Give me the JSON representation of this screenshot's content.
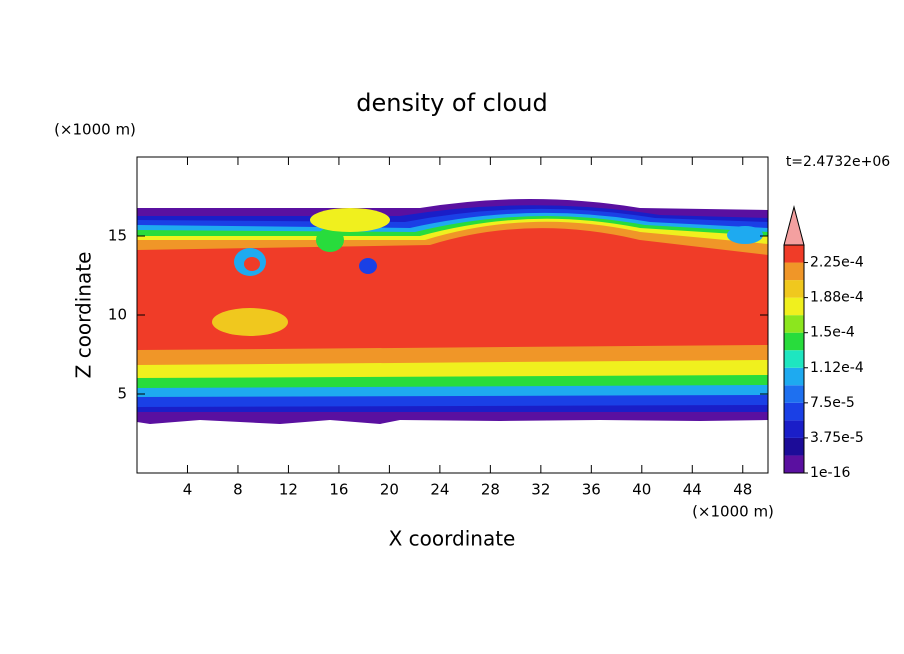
{
  "chart_data": {
    "type": "contour",
    "title": "density of cloud",
    "xlabel": "X coordinate",
    "ylabel": "Z coordinate",
    "xunit": "(×1000 m)",
    "yunit": "(×1000 m)",
    "annotation": "t=2.4732e+06",
    "xlim": [
      0,
      50
    ],
    "xticks": [
      4,
      8,
      12,
      16,
      20,
      24,
      28,
      32,
      36,
      40,
      44,
      48
    ],
    "ylim": [
      0,
      20
    ],
    "yticks": [
      5,
      10,
      15
    ],
    "colorbar": {
      "lim": [
        1e-16,
        0.00024375
      ],
      "ticks": [
        {
          "value": 1e-16,
          "label": "1e-16"
        },
        {
          "value": 3.75e-05,
          "label": "3.75e-5"
        },
        {
          "value": 7.5e-05,
          "label": "7.5e-5"
        },
        {
          "value": 0.0001125,
          "label": "1.12e-4"
        },
        {
          "value": 0.00015,
          "label": "1.5e-4"
        },
        {
          "value": 0.0001875,
          "label": "1.88e-4"
        },
        {
          "value": 0.000225,
          "label": "2.25e-4"
        }
      ],
      "colors": [
        "#5a10a0",
        "#1c0c98",
        "#1a1ec8",
        "#1a40e6",
        "#1e70f0",
        "#1eaaf0",
        "#1ee6c0",
        "#28dc3c",
        "#8ce61e",
        "#f0f01e",
        "#f0c81e",
        "#f09628",
        "#f03c28"
      ],
      "extend_color": "#f4a0a0"
    }
  }
}
